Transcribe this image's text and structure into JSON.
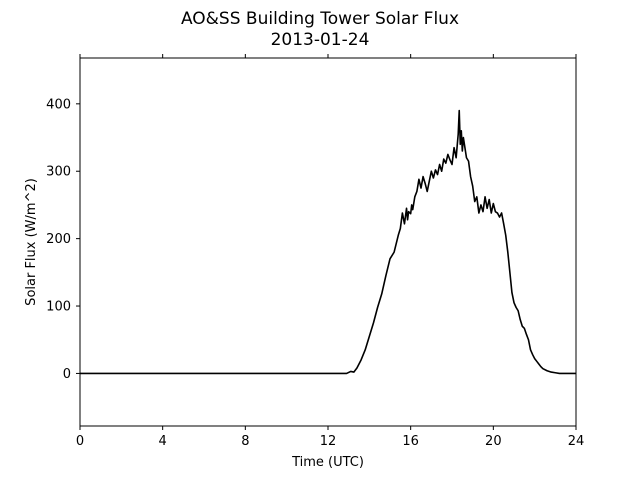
{
  "chart_data": {
    "type": "line",
    "title": "AO&SS Building Tower Solar Flux",
    "subtitle": "2013-01-24",
    "xlabel": "Time (UTC)",
    "ylabel": "Solar Flux (W/m^2)",
    "xlim": [
      0,
      24
    ],
    "ylim": [
      -78,
      468
    ],
    "xticks": [
      0,
      4,
      8,
      12,
      16,
      20,
      24
    ],
    "yticks": [
      0,
      100,
      200,
      300,
      400
    ],
    "grid": false,
    "legend": "none",
    "series": [
      {
        "color": "#000000",
        "x": [
          0,
          12.9,
          13.1,
          13.25,
          13.4,
          13.6,
          13.8,
          14.0,
          14.2,
          14.4,
          14.6,
          14.8,
          15.0,
          15.2,
          15.4,
          15.5,
          15.6,
          15.7,
          15.8,
          15.85,
          15.9,
          16.0,
          16.05,
          16.1,
          16.2,
          16.3,
          16.4,
          16.5,
          16.6,
          16.7,
          16.8,
          16.9,
          17.0,
          17.1,
          17.2,
          17.3,
          17.4,
          17.5,
          17.6,
          17.7,
          17.8,
          17.9,
          18.0,
          18.1,
          18.2,
          18.3,
          18.35,
          18.4,
          18.45,
          18.5,
          18.55,
          18.6,
          18.7,
          18.8,
          18.9,
          19.0,
          19.1,
          19.2,
          19.3,
          19.4,
          19.5,
          19.6,
          19.7,
          19.8,
          19.9,
          20.0,
          20.1,
          20.2,
          20.3,
          20.4,
          20.5,
          20.6,
          20.7,
          20.8,
          20.9,
          21.0,
          21.1,
          21.2,
          21.3,
          21.4,
          21.5,
          21.6,
          21.7,
          21.8,
          21.9,
          22.0,
          22.1,
          22.2,
          22.3,
          22.4,
          22.6,
          22.8,
          23.0,
          23.2,
          23.4,
          23.6,
          24.0
        ],
        "y": [
          0,
          0,
          3,
          2,
          8,
          20,
          35,
          55,
          75,
          98,
          118,
          145,
          170,
          180,
          205,
          215,
          238,
          222,
          245,
          228,
          240,
          237,
          250,
          243,
          262,
          270,
          288,
          275,
          292,
          282,
          270,
          285,
          300,
          290,
          302,
          295,
          310,
          300,
          318,
          312,
          325,
          317,
          310,
          335,
          320,
          355,
          390,
          340,
          360,
          330,
          350,
          340,
          320,
          315,
          292,
          278,
          255,
          262,
          238,
          250,
          240,
          262,
          245,
          258,
          238,
          252,
          240,
          238,
          232,
          238,
          222,
          205,
          180,
          150,
          120,
          105,
          98,
          93,
          80,
          70,
          67,
          58,
          50,
          35,
          28,
          22,
          18,
          14,
          10,
          7,
          4,
          2,
          1,
          0,
          0,
          0,
          0
        ]
      }
    ]
  }
}
